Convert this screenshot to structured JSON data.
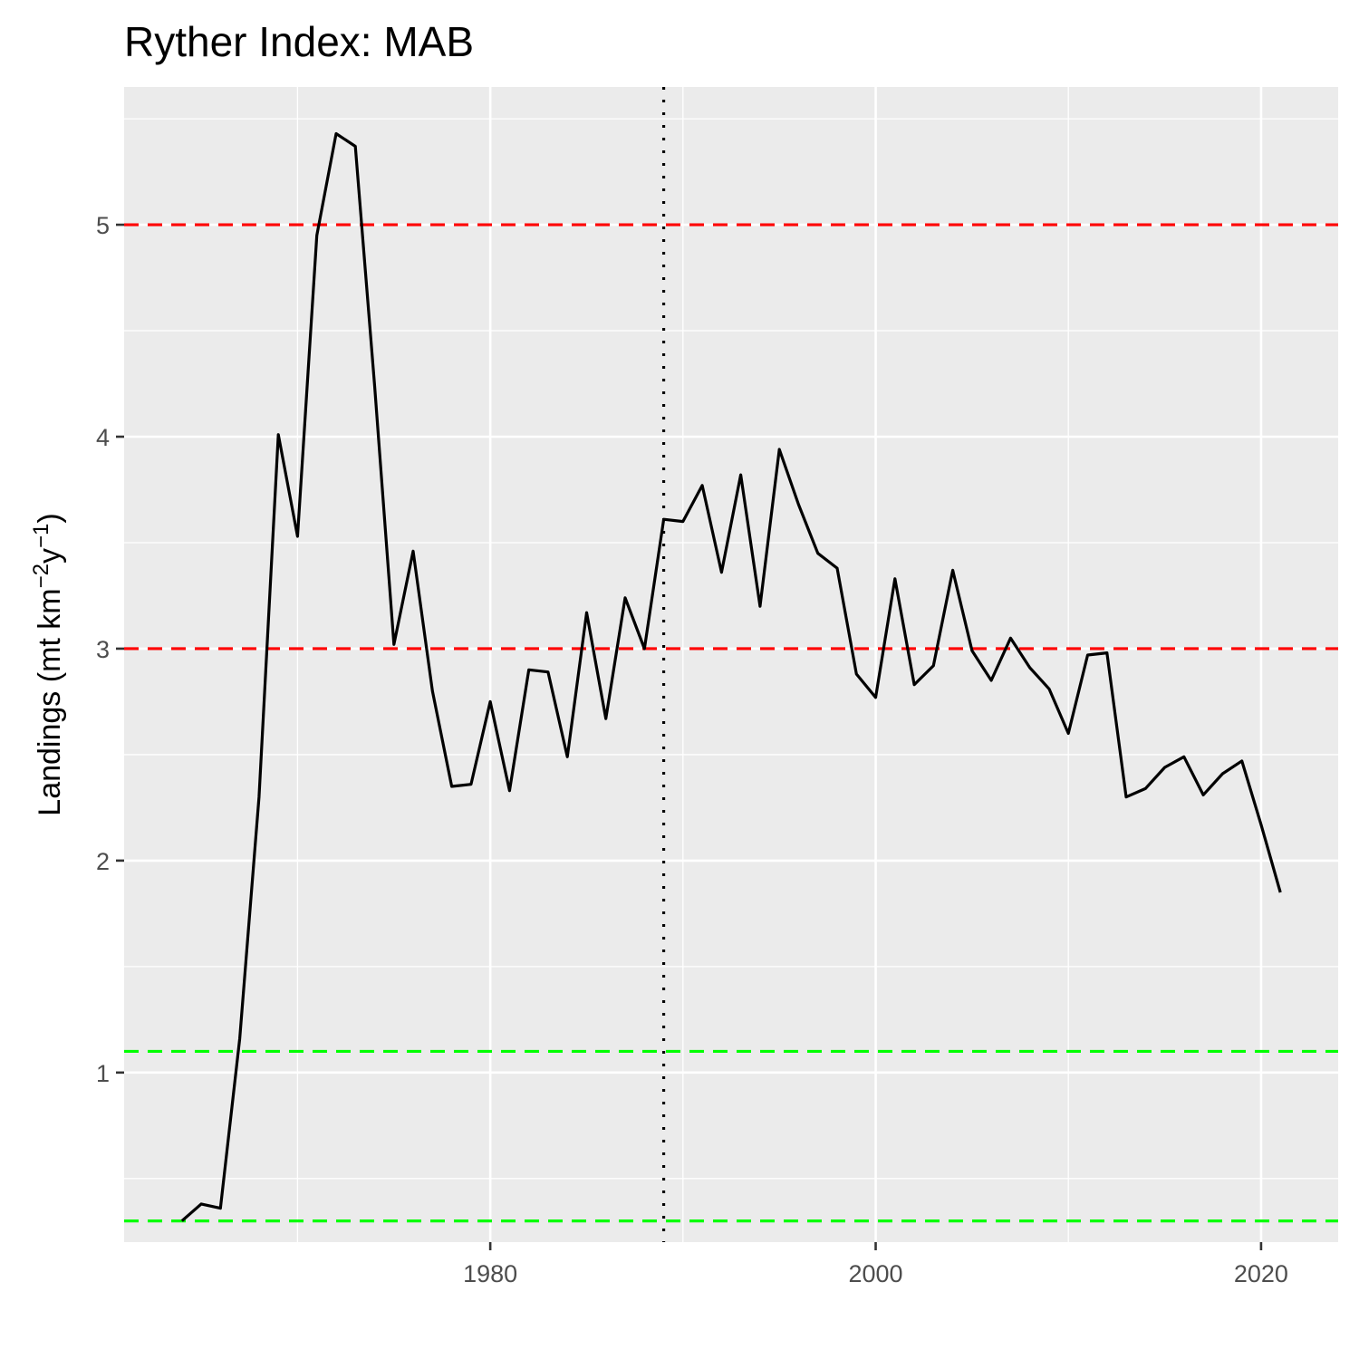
{
  "chart_data": {
    "type": "line",
    "title": "Ryther Index: MAB",
    "xlabel": "",
    "ylabel": {
      "prefix": "Landings (mt km",
      "sup1": "−2",
      "mid": "y",
      "sup2": "−1",
      "suffix": ")"
    },
    "xlim": [
      1961.0,
      2024.0
    ],
    "ylim": [
      0.2,
      5.65
    ],
    "x_ticks": [
      1980,
      2000,
      2020
    ],
    "x_minor_ticks": [
      1970,
      1990,
      2010
    ],
    "y_ticks": [
      1,
      2,
      3,
      4,
      5
    ],
    "y_minor_ticks": [
      0.5,
      1.5,
      2.5,
      3.5,
      4.5,
      5.5
    ],
    "grid": true,
    "reference_lines": [
      {
        "type": "hline",
        "y": 5,
        "style": "dashed",
        "color": "#ff0000"
      },
      {
        "type": "hline",
        "y": 3,
        "style": "dashed",
        "color": "#ff0000"
      },
      {
        "type": "hline",
        "y": 1.1,
        "style": "dashed",
        "color": "#00ff00"
      },
      {
        "type": "hline",
        "y": 0.3,
        "style": "dashed",
        "color": "#00ff00"
      },
      {
        "type": "vline",
        "x": 1989,
        "style": "dotted",
        "color": "#000000"
      }
    ],
    "series": [
      {
        "color": "#000000",
        "points": [
          [
            1964,
            0.3
          ],
          [
            1965,
            0.38
          ],
          [
            1966,
            0.36
          ],
          [
            1967,
            1.16
          ],
          [
            1968,
            2.3
          ],
          [
            1969,
            4.01
          ],
          [
            1970,
            3.53
          ],
          [
            1971,
            4.95
          ],
          [
            1972,
            5.43
          ],
          [
            1973,
            5.37
          ],
          [
            1974,
            4.24
          ],
          [
            1975,
            3.02
          ],
          [
            1976,
            3.46
          ],
          [
            1977,
            2.8
          ],
          [
            1978,
            2.35
          ],
          [
            1979,
            2.36
          ],
          [
            1980,
            2.75
          ],
          [
            1981,
            2.33
          ],
          [
            1982,
            2.9
          ],
          [
            1983,
            2.89
          ],
          [
            1984,
            2.49
          ],
          [
            1985,
            3.17
          ],
          [
            1986,
            2.67
          ],
          [
            1987,
            3.24
          ],
          [
            1988,
            3.0
          ],
          [
            1989,
            3.61
          ],
          [
            1990,
            3.6
          ],
          [
            1991,
            3.77
          ],
          [
            1992,
            3.36
          ],
          [
            1993,
            3.82
          ],
          [
            1994,
            3.2
          ],
          [
            1995,
            3.94
          ],
          [
            1996,
            3.68
          ],
          [
            1997,
            3.45
          ],
          [
            1998,
            3.38
          ],
          [
            1999,
            2.88
          ],
          [
            2000,
            2.77
          ],
          [
            2001,
            3.33
          ],
          [
            2002,
            2.83
          ],
          [
            2003,
            2.92
          ],
          [
            2004,
            3.37
          ],
          [
            2005,
            2.99
          ],
          [
            2006,
            2.85
          ],
          [
            2007,
            3.05
          ],
          [
            2008,
            2.91
          ],
          [
            2009,
            2.81
          ],
          [
            2010,
            2.6
          ],
          [
            2011,
            2.97
          ],
          [
            2012,
            2.98
          ],
          [
            2013,
            2.3
          ],
          [
            2014,
            2.34
          ],
          [
            2015,
            2.44
          ],
          [
            2016,
            2.49
          ],
          [
            2017,
            2.31
          ],
          [
            2018,
            2.41
          ],
          [
            2019,
            2.47
          ],
          [
            2020,
            2.17
          ],
          [
            2021,
            1.85
          ]
        ]
      }
    ]
  }
}
